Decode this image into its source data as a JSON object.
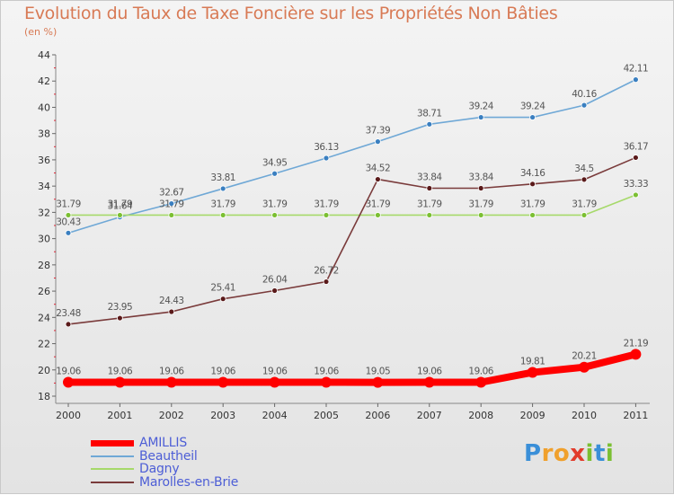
{
  "header": {
    "title": "Evolution du Taux de Taxe Foncière sur les Propriétés Non Bâties",
    "subtitle": "(en %)"
  },
  "logo": {
    "text": "Proxiti",
    "letters": [
      {
        "ch": "P",
        "color": "#3a8fd8"
      },
      {
        "ch": "r",
        "color": "#f0a02c"
      },
      {
        "ch": "o",
        "color": "#f0a02c"
      },
      {
        "ch": "x",
        "color": "#e23c2c"
      },
      {
        "ch": "i",
        "color": "#7bbf32"
      },
      {
        "ch": "t",
        "color": "#3a8fd8"
      },
      {
        "ch": "i",
        "color": "#7bbf32"
      }
    ]
  },
  "chart_data": {
    "type": "line",
    "title": "Evolution du Taux de Taxe Foncière sur les Propriétés Non Bâties",
    "ylabel": "(en %)",
    "xlabel": "",
    "categories": [
      "2000",
      "2001",
      "2002",
      "2003",
      "2004",
      "2005",
      "2006",
      "2007",
      "2008",
      "2009",
      "2010",
      "2011"
    ],
    "ylim": [
      18,
      44
    ],
    "yticks": [
      18,
      20,
      22,
      24,
      26,
      28,
      30,
      32,
      34,
      36,
      38,
      40,
      42,
      44
    ],
    "grid": false,
    "legend_position": "bottom-left",
    "series": [
      {
        "name": "AMILLIS",
        "color": "#ff0000",
        "point_color": "#ff0000",
        "bold": true,
        "values": [
          19.06,
          19.06,
          19.06,
          19.06,
          19.06,
          19.06,
          19.05,
          19.06,
          19.06,
          19.81,
          20.21,
          21.19
        ],
        "labels": [
          "19.06",
          "19.06",
          "19.06",
          "19.06",
          "19.06",
          "19.06",
          "19.05",
          "19.06",
          "19.06",
          "19.81",
          "20.21",
          "21.19"
        ]
      },
      {
        "name": "Beautheil",
        "color": "#6fa8d6",
        "point_color": "#3a7fc0",
        "bold": false,
        "values": [
          30.43,
          31.64,
          32.67,
          33.81,
          34.95,
          36.13,
          37.39,
          38.71,
          39.24,
          39.24,
          40.16,
          42.11
        ],
        "labels": [
          "30.43",
          "31.64",
          "32.67",
          "33.81",
          "34.95",
          "36.13",
          "37.39",
          "38.71",
          "39.24",
          "39.24",
          "40.16",
          "42.11"
        ]
      },
      {
        "name": "Dagny",
        "color": "#a6d96a",
        "point_color": "#7bbf32",
        "bold": false,
        "values": [
          31.79,
          31.79,
          31.79,
          31.79,
          31.79,
          31.79,
          31.79,
          31.79,
          31.79,
          31.79,
          31.79,
          33.33
        ],
        "labels": [
          "31.79",
          "31.79",
          "31.79",
          "31.79",
          "31.79",
          "31.79",
          "31.79",
          "31.79",
          "31.79",
          "31.79",
          "31.79",
          "33.33"
        ]
      },
      {
        "name": "Marolles-en-Brie",
        "color": "#7a3b3b",
        "point_color": "#5a1a1a",
        "bold": false,
        "values": [
          23.48,
          23.95,
          24.43,
          25.41,
          26.04,
          26.72,
          34.52,
          33.84,
          33.84,
          34.16,
          34.5,
          36.17
        ],
        "labels": [
          "23.48",
          "23.95",
          "24.43",
          "25.41",
          "26.04",
          "26.72",
          "34.52",
          "33.84",
          "33.84",
          "34.16",
          "34.5",
          "36.17"
        ]
      }
    ]
  }
}
